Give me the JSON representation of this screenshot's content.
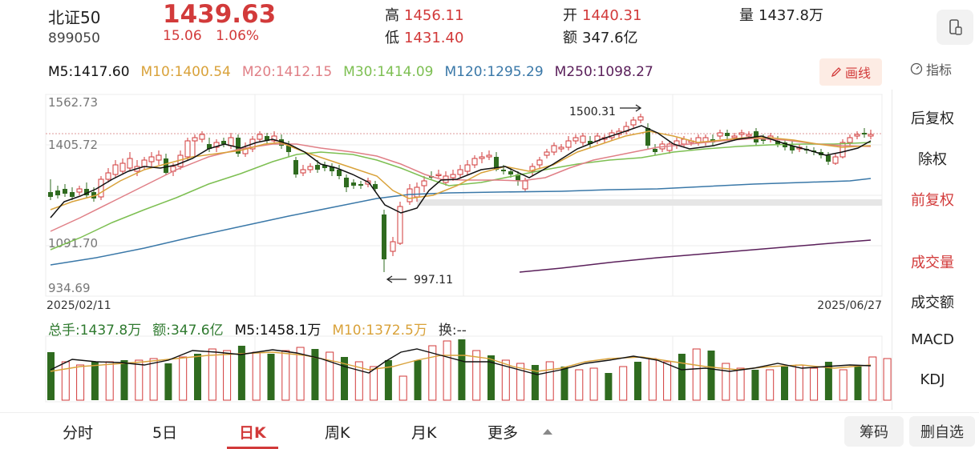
{
  "header": {
    "name": "北证50",
    "code": "899050",
    "price": "1439.63",
    "change": "15.06",
    "change_pct": "1.06%",
    "high_label": "高",
    "high": "1456.11",
    "low_label": "低",
    "low": "1431.40",
    "open_label": "开",
    "open": "1440.31",
    "amount_label": "额",
    "amount": "347.6亿",
    "volume_label": "量",
    "volume": "1437.8万"
  },
  "ma": {
    "m5": "M5:1417.60",
    "m10": "M10:1400.54",
    "m20": "M20:1412.15",
    "m30": "M30:1414.09",
    "m120": "M120:1295.29",
    "m250": "M250:1098.27"
  },
  "toolbar": {
    "draw_label": "画线",
    "indicator_label": "指标"
  },
  "chart": {
    "y_ticks": [
      "1562.73",
      "1405.72",
      "1091.70",
      "934.69"
    ],
    "date_start": "2025/02/11",
    "date_end": "2025/06/27",
    "max_label": "1500.31",
    "min_label": "997.11"
  },
  "volume_row": {
    "total": "总手:1437.8万",
    "amount": "额:347.6亿",
    "m5": "M5:1458.1万",
    "m10": "M10:1372.5万",
    "turnover": "换:--"
  },
  "side_panel": {
    "items": [
      "后复权",
      "除权",
      "前复权",
      "成交量",
      "成交额",
      "MACD",
      "KDJ"
    ]
  },
  "tabs": [
    "分时",
    "5日",
    "日K",
    "周K",
    "月K",
    "更多"
  ],
  "bottom_buttons": {
    "chips": "筹码",
    "remove_fav": "删自选"
  },
  "colors": {
    "up": "#d23a3a",
    "down": "#2f6b1f",
    "m5": "#111111",
    "m10": "#d9a23a",
    "m20": "#e07f86",
    "m30": "#7dbf52",
    "m120": "#3a78a8",
    "m250": "#5a1f5a"
  }
}
